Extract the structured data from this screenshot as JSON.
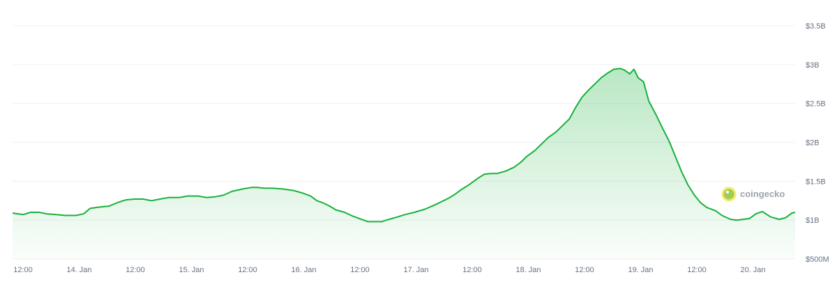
{
  "chart_data": {
    "type": "area",
    "x_ticks": [
      "12:00",
      "14. Jan",
      "12:00",
      "15. Jan",
      "12:00",
      "16. Jan",
      "12:00",
      "17. Jan",
      "12:00",
      "18. Jan",
      "12:00",
      "19. Jan",
      "12:00",
      "20. Jan"
    ],
    "y_ticks": [
      {
        "value": 3500000000,
        "label": "$3.5B"
      },
      {
        "value": 3000000000,
        "label": "$3B"
      },
      {
        "value": 2500000000,
        "label": "$2.5B"
      },
      {
        "value": 2000000000,
        "label": "$2B"
      },
      {
        "value": 1500000000,
        "label": "$1.5B"
      },
      {
        "value": 1000000000,
        "label": "$1B"
      },
      {
        "value": 500000000,
        "label": "$500M"
      }
    ],
    "ylim": [
      500000000,
      3500000000
    ],
    "x_unit": "days",
    "xlim": [
      13.45,
      20.83
    ],
    "grid": true,
    "line_color": "#16b13a",
    "fill_color": "#16b13a",
    "series": [
      {
        "values": [
          [
            13.45,
            1.09
          ],
          [
            13.55,
            1.07
          ],
          [
            13.62,
            1.1
          ],
          [
            13.7,
            1.1
          ],
          [
            13.77,
            1.08
          ],
          [
            13.86,
            1.07
          ],
          [
            13.95,
            1.06
          ],
          [
            14.05,
            1.06
          ],
          [
            14.12,
            1.08
          ],
          [
            14.18,
            1.15
          ],
          [
            14.28,
            1.17
          ],
          [
            14.36,
            1.18
          ],
          [
            14.45,
            1.23
          ],
          [
            14.52,
            1.26
          ],
          [
            14.6,
            1.27
          ],
          [
            14.68,
            1.27
          ],
          [
            14.76,
            1.25
          ],
          [
            14.84,
            1.27
          ],
          [
            14.92,
            1.29
          ],
          [
            15.02,
            1.29
          ],
          [
            15.1,
            1.31
          ],
          [
            15.2,
            1.31
          ],
          [
            15.28,
            1.29
          ],
          [
            15.36,
            1.3
          ],
          [
            15.44,
            1.32
          ],
          [
            15.52,
            1.37
          ],
          [
            15.62,
            1.4
          ],
          [
            15.7,
            1.42
          ],
          [
            15.76,
            1.42
          ],
          [
            15.82,
            1.41
          ],
          [
            15.9,
            1.41
          ],
          [
            16.0,
            1.4
          ],
          [
            16.1,
            1.38
          ],
          [
            16.18,
            1.35
          ],
          [
            16.26,
            1.31
          ],
          [
            16.32,
            1.25
          ],
          [
            16.38,
            1.22
          ],
          [
            16.44,
            1.18
          ],
          [
            16.5,
            1.13
          ],
          [
            16.58,
            1.1
          ],
          [
            16.66,
            1.05
          ],
          [
            16.72,
            1.02
          ],
          [
            16.8,
            0.98
          ],
          [
            16.87,
            0.98
          ],
          [
            16.93,
            0.98
          ],
          [
            17.0,
            1.01
          ],
          [
            17.08,
            1.04
          ],
          [
            17.15,
            1.07
          ],
          [
            17.24,
            1.1
          ],
          [
            17.34,
            1.14
          ],
          [
            17.44,
            1.2
          ],
          [
            17.5,
            1.24
          ],
          [
            17.56,
            1.28
          ],
          [
            17.62,
            1.33
          ],
          [
            17.68,
            1.39
          ],
          [
            17.76,
            1.46
          ],
          [
            17.84,
            1.54
          ],
          [
            17.9,
            1.59
          ],
          [
            17.96,
            1.6
          ],
          [
            18.02,
            1.6
          ],
          [
            18.1,
            1.63
          ],
          [
            18.18,
            1.68
          ],
          [
            18.24,
            1.74
          ],
          [
            18.3,
            1.82
          ],
          [
            18.38,
            1.9
          ],
          [
            18.44,
            1.98
          ],
          [
            18.5,
            2.06
          ],
          [
            18.58,
            2.14
          ],
          [
            18.64,
            2.22
          ],
          [
            18.7,
            2.3
          ],
          [
            18.76,
            2.45
          ],
          [
            18.82,
            2.58
          ],
          [
            18.88,
            2.67
          ],
          [
            18.94,
            2.75
          ],
          [
            19.0,
            2.83
          ],
          [
            19.06,
            2.89
          ],
          [
            19.12,
            2.94
          ],
          [
            19.18,
            2.95
          ],
          [
            19.22,
            2.93
          ],
          [
            19.27,
            2.88
          ],
          [
            19.31,
            2.94
          ],
          [
            19.35,
            2.83
          ],
          [
            19.4,
            2.78
          ],
          [
            19.45,
            2.53
          ],
          [
            19.52,
            2.35
          ],
          [
            19.58,
            2.18
          ],
          [
            19.64,
            2.02
          ],
          [
            19.7,
            1.82
          ],
          [
            19.76,
            1.62
          ],
          [
            19.82,
            1.45
          ],
          [
            19.88,
            1.32
          ],
          [
            19.94,
            1.22
          ],
          [
            20.0,
            1.16
          ],
          [
            20.08,
            1.12
          ],
          [
            20.14,
            1.06
          ],
          [
            20.22,
            1.01
          ],
          [
            20.28,
            1.0
          ],
          [
            20.34,
            1.01
          ],
          [
            20.4,
            1.02
          ],
          [
            20.46,
            1.08
          ],
          [
            20.52,
            1.11
          ],
          [
            20.6,
            1.04
          ],
          [
            20.68,
            1.01
          ],
          [
            20.74,
            1.03
          ],
          [
            20.8,
            1.09
          ],
          [
            20.83,
            1.1
          ]
        ]
      }
    ]
  },
  "watermark": {
    "text": "coingecko",
    "icon": "gecko-logo-icon"
  }
}
